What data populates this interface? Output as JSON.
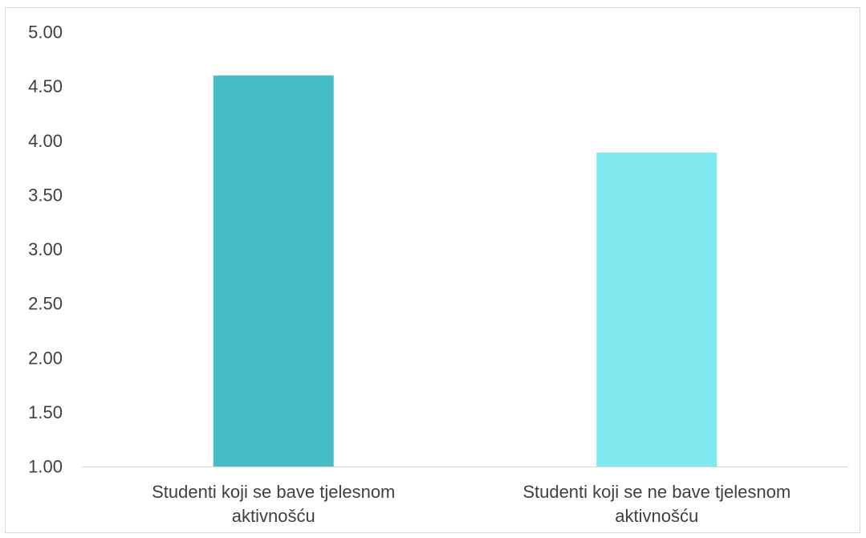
{
  "chart_data": {
    "type": "bar",
    "categories": [
      [
        "Studenti koji se bave tjelesnom",
        "aktivnošću"
      ],
      [
        "Studenti koji se ne bave tjelesnom",
        "aktivnošću"
      ]
    ],
    "values": [
      4.6,
      3.89
    ],
    "ylim": [
      1.0,
      5.0
    ],
    "yticks": [
      "1.00",
      "1.50",
      "2.00",
      "2.50",
      "3.00",
      "3.50",
      "4.00",
      "4.50",
      "5.00"
    ],
    "bar_colors": [
      "#46bcc6",
      "#7fe9ef"
    ],
    "title": "",
    "xlabel": "",
    "ylabel": "",
    "grid": false,
    "legend": "none"
  }
}
